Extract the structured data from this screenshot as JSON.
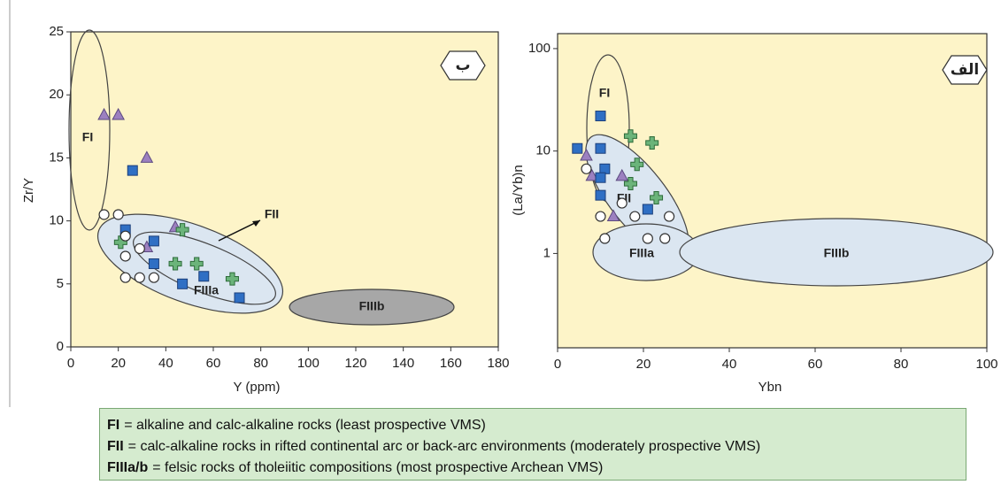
{
  "chart_data": [
    {
      "type": "scatter",
      "panel_label": "ب",
      "x_label": "Y (ppm)",
      "y_label": "Zr/Y",
      "xlim": [
        0,
        180
      ],
      "ylim": [
        0,
        25
      ],
      "xticks": [
        0,
        20,
        40,
        60,
        80,
        100,
        120,
        140,
        160,
        180
      ],
      "yticks": [
        0,
        5,
        10,
        15,
        20,
        25
      ],
      "log_y": false,
      "background": "#fdf4c8",
      "regions": [
        "FI",
        "FII",
        "FIIIa",
        "FIIIb"
      ],
      "series": [
        {
          "marker": "triangle",
          "color": "#9c80c0",
          "x": [
            14,
            20,
            32,
            44,
            32
          ],
          "values": [
            18.4,
            18.4,
            15,
            9.5,
            7.9
          ]
        },
        {
          "marker": "square",
          "color": "#2f6fc4",
          "x": [
            26,
            23,
            35,
            35,
            47,
            56,
            71
          ],
          "values": [
            14,
            9.3,
            8.4,
            6.6,
            5,
            5.6,
            3.9
          ]
        },
        {
          "marker": "cross",
          "color": "#6bb47a",
          "x": [
            21,
            47,
            44,
            53,
            68
          ],
          "values": [
            8.3,
            9.3,
            6.6,
            6.6,
            5.4
          ]
        },
        {
          "marker": "circle",
          "color": "#ffffff",
          "x": [
            14,
            20,
            23,
            23,
            29,
            23,
            29,
            35
          ],
          "values": [
            10.5,
            10.5,
            8.8,
            7.2,
            7.8,
            5.5,
            5.5,
            5.5
          ]
        }
      ]
    },
    {
      "type": "scatter",
      "panel_label": "الف",
      "x_label": "Ybn",
      "y_label": "(La/Yb)n",
      "xlim": [
        0,
        100
      ],
      "ylim": [
        0.12,
        140
      ],
      "xticks": [
        0,
        20,
        40,
        60,
        80,
        100
      ],
      "yticks": [
        1,
        10,
        100
      ],
      "log_y": true,
      "background": "#fdf4c8",
      "regions": [
        "FI",
        "FII",
        "FIIIa",
        "FIIIb"
      ],
      "series": [
        {
          "marker": "triangle",
          "color": "#9c80c0",
          "x": [
            6.7,
            8,
            15,
            13
          ],
          "values": [
            9,
            5.7,
            5.7,
            2.3
          ]
        },
        {
          "marker": "square",
          "color": "#2f6fc4",
          "x": [
            10,
            4.6,
            10,
            11,
            10,
            10,
            21
          ],
          "values": [
            22,
            10.6,
            10.6,
            6.7,
            5.5,
            3.7,
            2.7
          ]
        },
        {
          "marker": "cross",
          "color": "#6bb47a",
          "x": [
            17,
            22,
            18.5,
            17,
            23
          ],
          "values": [
            14,
            12,
            7.4,
            4.8,
            3.5
          ]
        },
        {
          "marker": "circle",
          "color": "#ffffff",
          "x": [
            6.7,
            15,
            10,
            18,
            26,
            11,
            21,
            25
          ],
          "values": [
            6.7,
            3.1,
            2.3,
            2.3,
            2.3,
            1.4,
            1.4,
            1.4
          ]
        }
      ]
    }
  ],
  "caption": [
    {
      "term": "FI",
      "text": "= alkaline and calc-alkaline rocks (least prospective VMS)"
    },
    {
      "term": "FII",
      "text": "= calc-alkaline rocks in rifted continental arc or back-arc environments (moderately prospective VMS)"
    },
    {
      "term": "FIIIa/b",
      "text": "= felsic rocks of tholeiitic compositions (most prospective Archean VMS)"
    }
  ]
}
